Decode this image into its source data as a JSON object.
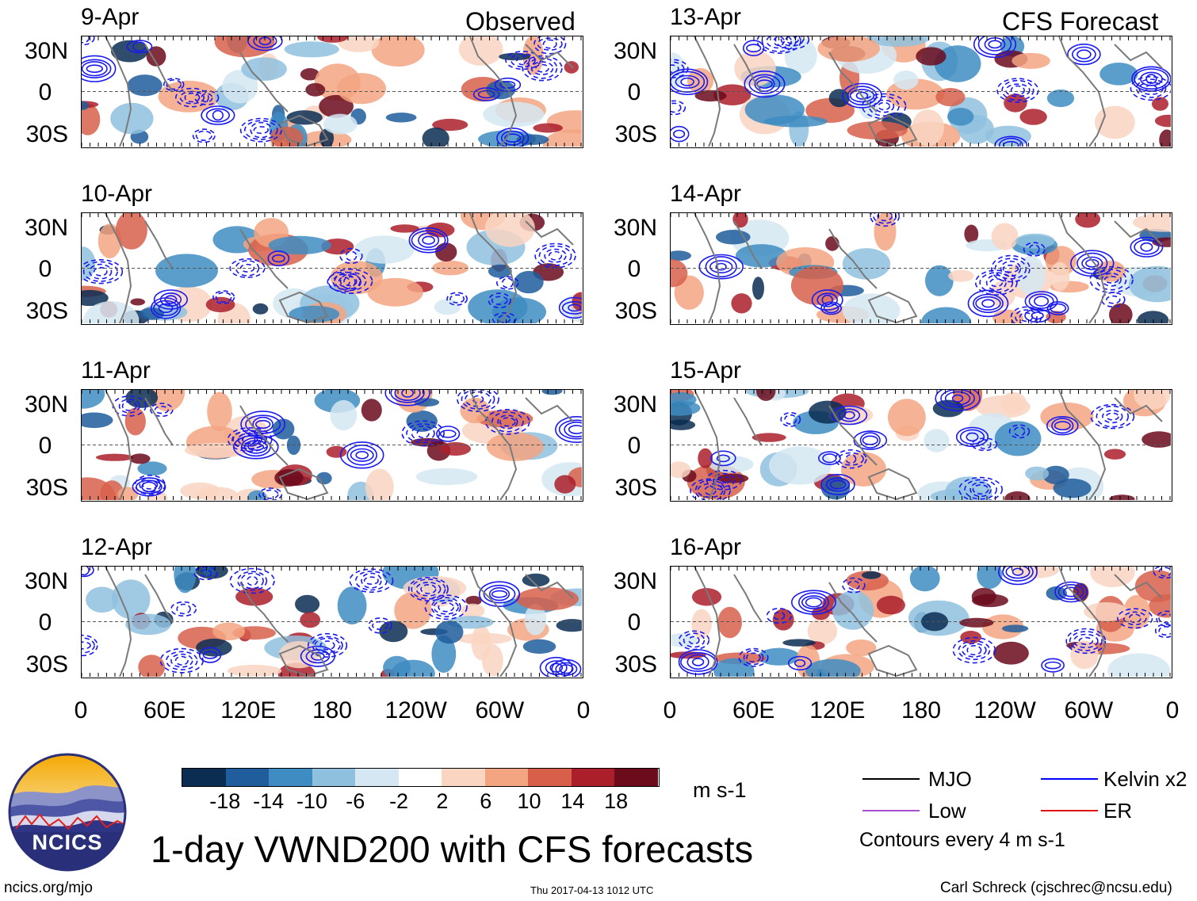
{
  "headers": {
    "observed": "Observed",
    "forecast": "CFS Forecast"
  },
  "panels_left": [
    "9-Apr",
    "10-Apr",
    "11-Apr",
    "12-Apr"
  ],
  "panels_right": [
    "13-Apr",
    "14-Apr",
    "15-Apr",
    "16-Apr"
  ],
  "lat_ticks": [
    "30N",
    "0",
    "30S"
  ],
  "lon_ticks": [
    "0",
    "60E",
    "120E",
    "180",
    "120W",
    "60W",
    "0"
  ],
  "colorbar": {
    "colors": [
      "#0b2d52",
      "#1f5d9c",
      "#3e8cc2",
      "#8fc1de",
      "#d5e7f2",
      "#ffffff",
      "#f9d5c2",
      "#f3a581",
      "#d8604b",
      "#aa1f2a",
      "#6b0b1c"
    ],
    "ticks": [
      "-18",
      "-14",
      "-10",
      "-6",
      "-2",
      "2",
      "6",
      "10",
      "14",
      "18"
    ],
    "units": "m s-1"
  },
  "legend": {
    "mjo": "MJO",
    "kelvin": "Kelvin x2",
    "low": "Low",
    "er": "ER",
    "contours": "Contours every 4 m s-1",
    "colors": {
      "mjo": "#000000",
      "kelvin": "#0000ff",
      "low": "#a64dd1",
      "er": "#e01010"
    }
  },
  "title": "1-day VWND200 with CFS forecasts",
  "logo_text": "NCICS",
  "footer": {
    "url": "ncics.org/mjo",
    "timestamp": "Thu 2017-04-13 1012 UTC",
    "author": "Carl Schreck (cjschrec@ncsu.edu)"
  }
}
